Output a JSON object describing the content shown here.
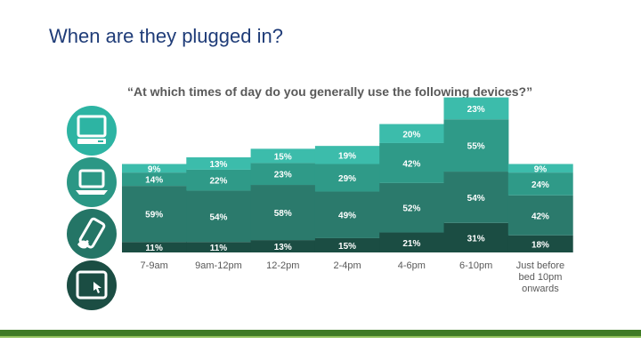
{
  "slide": {
    "title": "When are they plugged in?"
  },
  "chart_data": {
    "type": "bar",
    "stacked": true,
    "title": "“At which times of day do you generally use the following devices?”",
    "categories": [
      "7-9am",
      "9am-12pm",
      "12-2pm",
      "2-4pm",
      "4-6pm",
      "6-10pm",
      "Just before bed 10pm onwards"
    ],
    "category_lines": [
      [
        "7-9am"
      ],
      [
        "9am-12pm"
      ],
      [
        "12-2pm"
      ],
      [
        "2-4pm"
      ],
      [
        "4-6pm"
      ],
      [
        "6-10pm"
      ],
      [
        "Just before",
        "bed 10pm",
        "onwards"
      ]
    ],
    "series": [
      {
        "icon": "tablet-icon",
        "color": "#1b4d43",
        "values": [
          11,
          11,
          13,
          15,
          21,
          31,
          18
        ],
        "labels": [
          "11%",
          "11%",
          "13%",
          "15%",
          "21%",
          "31%",
          "18%"
        ]
      },
      {
        "icon": "smartphone-icon",
        "color": "#2b7a6c",
        "values": [
          59,
          54,
          58,
          49,
          52,
          54,
          42
        ],
        "labels": [
          "59%",
          "54%",
          "58%",
          "49%",
          "52%",
          "54%",
          "42%"
        ]
      },
      {
        "icon": "laptop-icon",
        "color": "#2f9a88",
        "values": [
          14,
          22,
          23,
          29,
          42,
          55,
          24
        ],
        "labels": [
          "14%",
          "22%",
          "23%",
          "29%",
          "42%",
          "55%",
          "24%"
        ]
      },
      {
        "icon": "desktop-computer-icon",
        "color": "#3cbcab",
        "values": [
          9,
          13,
          15,
          19,
          20,
          23,
          9
        ],
        "labels": [
          "9%",
          "13%",
          "15%",
          "19%",
          "20%",
          "23%",
          "9%"
        ]
      }
    ],
    "legend": "icons-left"
  },
  "icons": [
    {
      "name": "desktop-computer-icon",
      "color": "#2db4a3"
    },
    {
      "name": "laptop-icon",
      "color": "#2b9785"
    },
    {
      "name": "smartphone-icon",
      "color": "#247566"
    },
    {
      "name": "tablet-icon",
      "color": "#1b4d43"
    }
  ]
}
